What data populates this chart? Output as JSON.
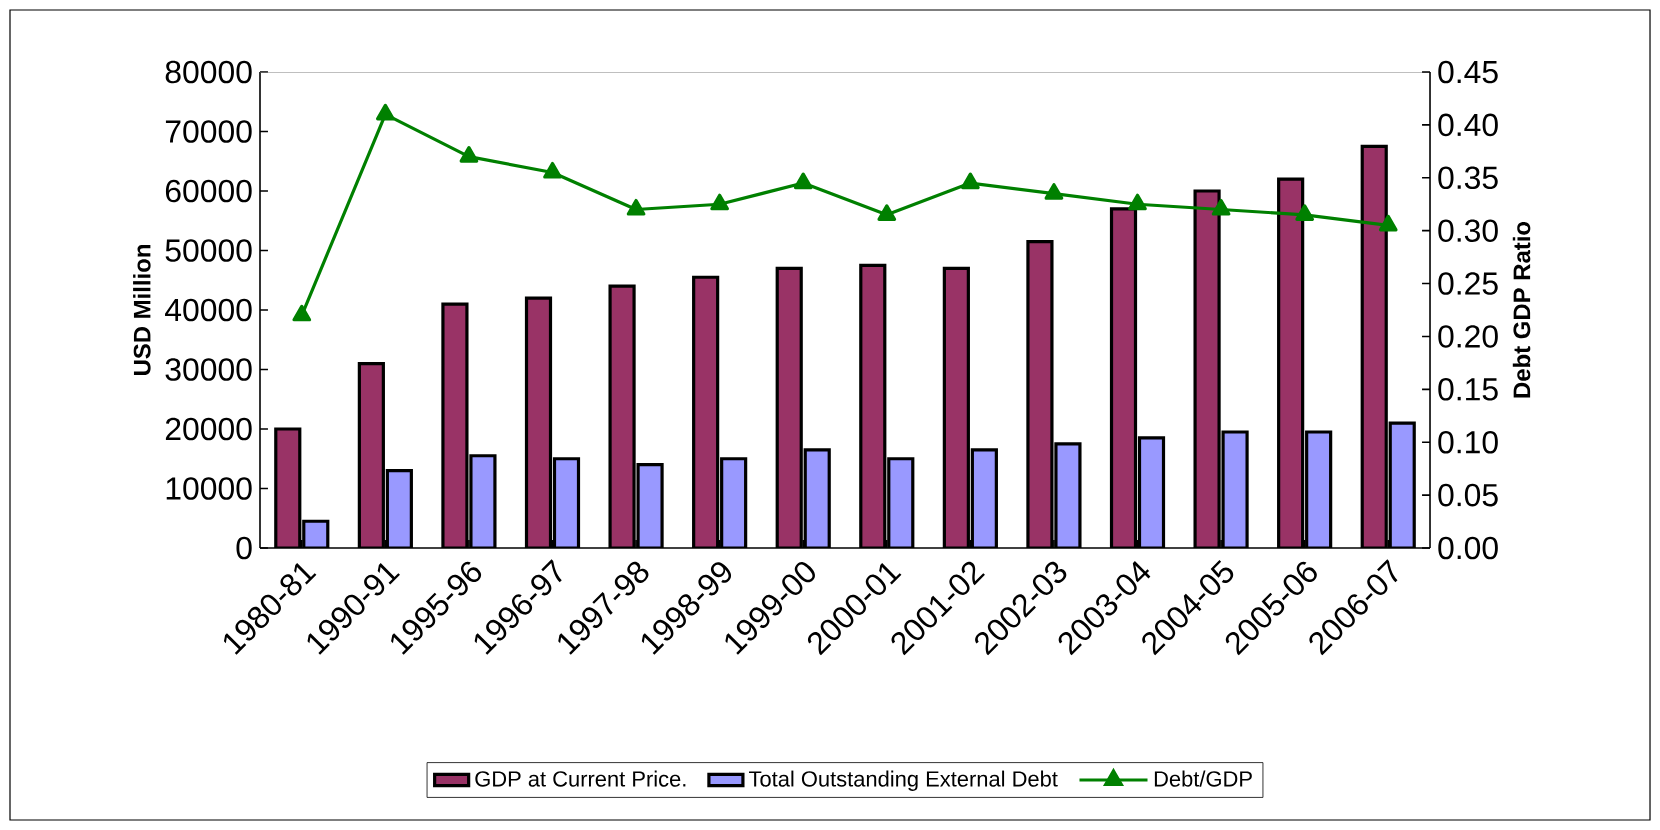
{
  "chart_data": {
    "type": "bar",
    "categories": [
      "1980-81",
      "1990-91",
      "1995-96",
      "1996-97",
      "1997-98",
      "1998-99",
      "1999-00",
      "2000-01",
      "2001-02",
      "2002-03",
      "2003-04",
      "2004-05",
      "2005-06",
      "2006-07"
    ],
    "ylabel": "USD Million",
    "y2label": "Debt GDP Ratio",
    "ylim": [
      0,
      80000
    ],
    "yticks": [
      0,
      10000,
      20000,
      30000,
      40000,
      50000,
      60000,
      70000,
      80000
    ],
    "y2lim": [
      0,
      0.45
    ],
    "y2ticks": [
      {
        "value": 0,
        "label": "0.00"
      },
      {
        "value": 0.05,
        "label": "0.05"
      },
      {
        "value": 0.1,
        "label": "0.10"
      },
      {
        "value": 0.15,
        "label": "0.15"
      },
      {
        "value": 0.2,
        "label": "0.20"
      },
      {
        "value": 0.25,
        "label": "0.25"
      },
      {
        "value": 0.3,
        "label": "0.30"
      },
      {
        "value": 0.35,
        "label": "0.35"
      },
      {
        "value": 0.4,
        "label": "0.40"
      },
      {
        "value": 0.45,
        "label": "0.45"
      }
    ],
    "legend": "bottom",
    "series": [
      {
        "name": "GDP at Current Price.",
        "color": "#993366",
        "values": [
          20000,
          31000,
          41000,
          42000,
          44000,
          45500,
          47000,
          47500,
          47000,
          51500,
          57000,
          60000,
          62000,
          67500
        ]
      },
      {
        "name": "Total Outstanding External Debt",
        "color": "#9999ff",
        "values": [
          4500,
          13000,
          15500,
          15000,
          14000,
          15000,
          16500,
          15000,
          16500,
          17500,
          18500,
          19500,
          19500,
          21000
        ]
      },
      {
        "name": "Debt/GDP",
        "type": "line",
        "axis": "y2",
        "color": "#008000",
        "marker": "triangle",
        "values": [
          0.22,
          0.41,
          0.37,
          0.355,
          0.32,
          0.325,
          0.345,
          0.315,
          0.345,
          0.335,
          0.325,
          0.32,
          0.315,
          0.305
        ]
      }
    ]
  }
}
